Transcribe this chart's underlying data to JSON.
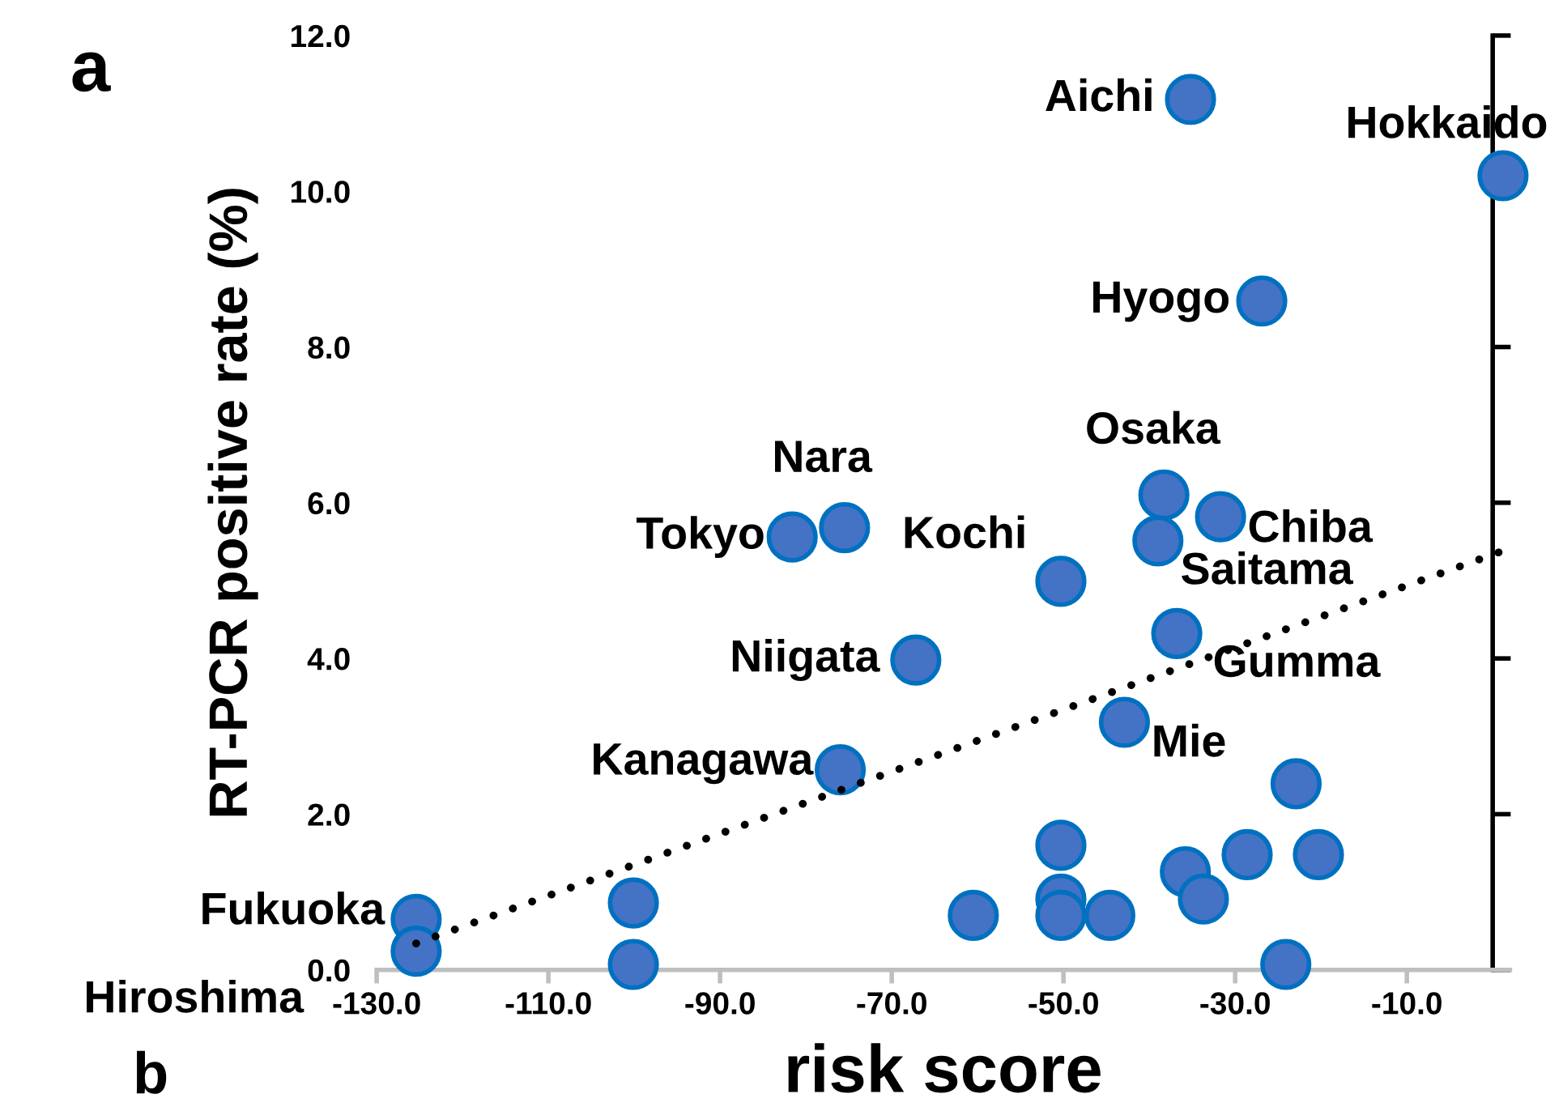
{
  "chart_data": {
    "type": "scatter",
    "xlabel": "risk score",
    "ylabel": "RT-PCR positive rate (%)",
    "xlim": [
      -130,
      2
    ],
    "ylim": [
      0,
      12
    ],
    "xticks": [
      {
        "value": -130,
        "label": "-130.0"
      },
      {
        "value": -110,
        "label": "-110.0"
      },
      {
        "value": -90,
        "label": "-90.0"
      },
      {
        "value": -70,
        "label": "-70.0"
      },
      {
        "value": -50,
        "label": "-50.0"
      },
      {
        "value": -30,
        "label": "-30.0"
      },
      {
        "value": -10,
        "label": "-10.0"
      }
    ],
    "yticks": [
      {
        "value": 0,
        "label": "0.0"
      },
      {
        "value": 2,
        "label": "2.0"
      },
      {
        "value": 4,
        "label": "4.0"
      },
      {
        "value": 6,
        "label": "6.0"
      },
      {
        "value": 8,
        "label": "8.0"
      },
      {
        "value": 10,
        "label": "10.0"
      },
      {
        "value": 12,
        "label": "12.0"
      }
    ],
    "grid": false,
    "legend": false,
    "marker": "circle",
    "series": [
      {
        "color": "#4472c4",
        "x": [
          -35.2,
          1.2,
          -26.9,
          -38.3,
          -31.7,
          -81.6,
          -75.5,
          -39.0,
          -50.3,
          -36.8,
          -67.2,
          -42.9,
          -76.0,
          -22.9,
          -50.3,
          -28.6,
          -20.3,
          -35.8,
          -33.7,
          -50.3,
          -100.1,
          -125.4,
          -125.4,
          -60.5,
          -50.3,
          -44.6,
          -100.1,
          -24.1
        ],
        "values": [
          11.18,
          10.2,
          8.59,
          6.1,
          5.82,
          5.56,
          5.68,
          5.51,
          4.99,
          4.32,
          3.98,
          3.18,
          2.57,
          2.39,
          1.6,
          1.48,
          1.48,
          1.26,
          0.91,
          0.91,
          0.86,
          0.65,
          0.24,
          0.7,
          0.7,
          0.7,
          0.07,
          0.07
        ]
      },
      {
        "type": "line",
        "color": "#000000",
        "line_style": "dotted",
        "marker": "none",
        "x": [
          -125.4,
          1.9
        ],
        "values": [
          0.34,
          5.41
        ]
      }
    ],
    "annotations": [
      {
        "text": "Aichi",
        "x": -35.2,
        "y": 11.18
      },
      {
        "text": "Hokkaido",
        "x": 1.2,
        "y": 10.2
      },
      {
        "text": "Hyogo",
        "x": -26.9,
        "y": 8.59
      },
      {
        "text": "Osaka",
        "x": -38.3,
        "y": 6.1
      },
      {
        "text": "Chiba",
        "x": -31.7,
        "y": 5.82
      },
      {
        "text": "Tokyo",
        "x": -81.6,
        "y": 5.56
      },
      {
        "text": "Nara",
        "x": -75.5,
        "y": 5.68
      },
      {
        "text": "Saitama",
        "x": -39.0,
        "y": 5.51
      },
      {
        "text": "Kochi",
        "x": -50.3,
        "y": 4.99
      },
      {
        "text": "Gumma",
        "x": -36.8,
        "y": 4.32
      },
      {
        "text": "Niigata",
        "x": -67.2,
        "y": 3.98
      },
      {
        "text": "Mie",
        "x": -42.9,
        "y": 3.18
      },
      {
        "text": "Kanagawa",
        "x": -76.0,
        "y": 2.57
      },
      {
        "text": "Fukuoka",
        "x": -125.4,
        "y": 0.65
      },
      {
        "text": "Hiroshima",
        "x": -125.4,
        "y": 0.24
      },
      "a",
      "b"
    ]
  }
}
